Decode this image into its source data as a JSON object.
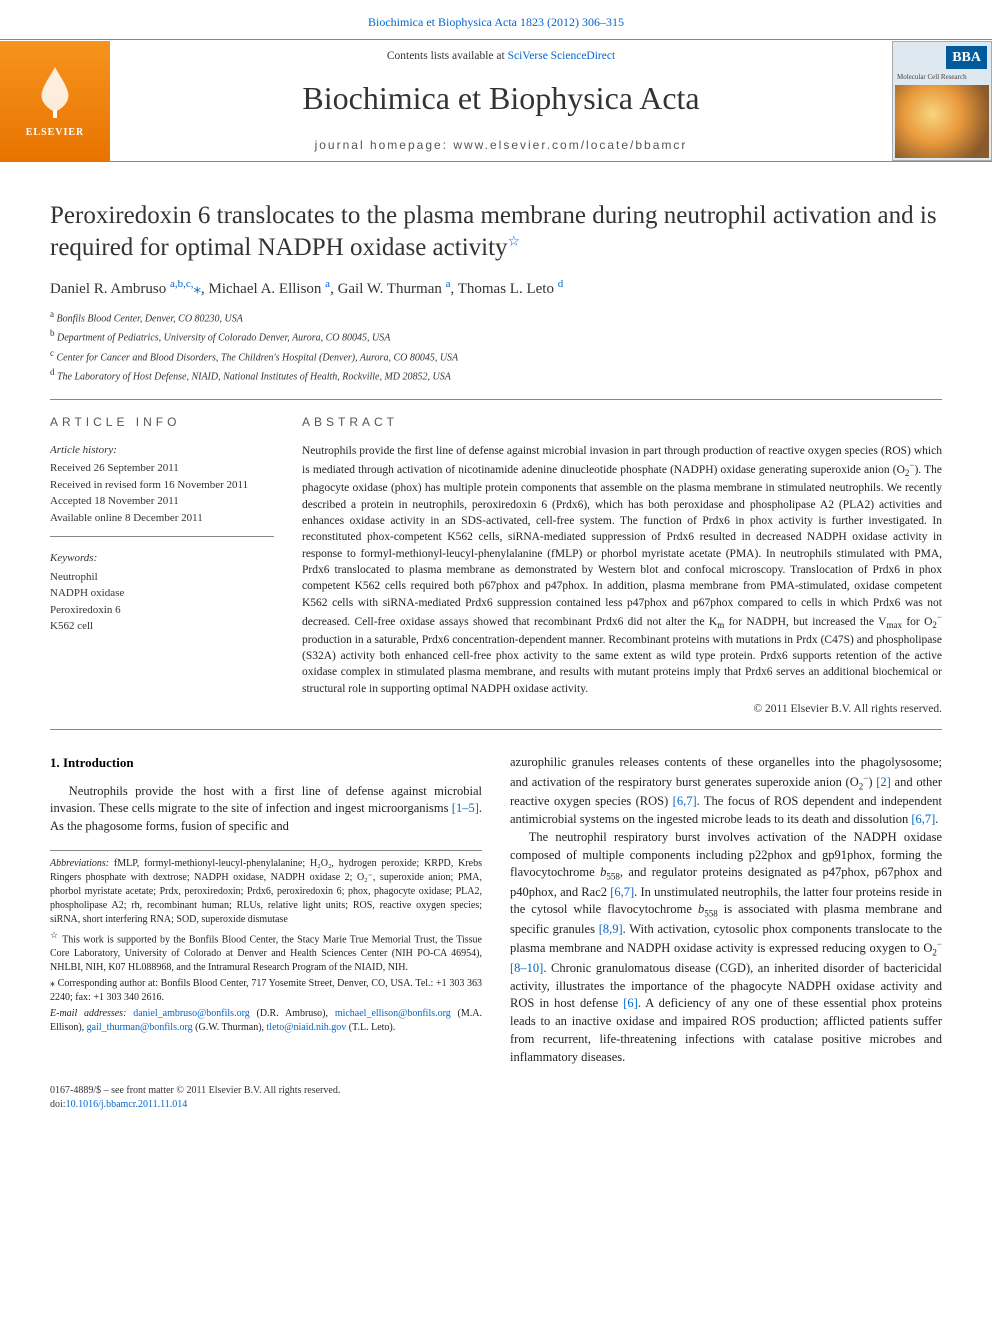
{
  "top_link": "Biochimica et Biophysica Acta 1823 (2012) 306–315",
  "header": {
    "contents_prefix": "Contents lists available at ",
    "contents_link": "SciVerse ScienceDirect",
    "journal_name": "Biochimica et Biophysica Acta",
    "homepage_label": "journal homepage: www.elsevier.com/locate/bbamcr",
    "elsevier_label": "ELSEVIER",
    "cover_badge": "BBA",
    "cover_subtitle": "Molecular Cell Research"
  },
  "article": {
    "title": "Peroxiredoxin 6 translocates to the plasma membrane during neutrophil activation and is required for optimal NADPH oxidase activity",
    "star": "☆",
    "authors_html": "Daniel R. Ambruso <sup class='affil-sup'>a,b,c,</sup><span class='corr'>⁎</span>, Michael A. Ellison <sup class='affil-sup'>a</sup>, Gail W. Thurman <sup class='affil-sup'>a</sup>, Thomas L. Leto <sup class='affil-sup'>d</sup>",
    "affiliations": [
      {
        "sup": "a",
        "text": "Bonfils Blood Center, Denver, CO 80230, USA"
      },
      {
        "sup": "b",
        "text": "Department of Pediatrics, University of Colorado Denver, Aurora, CO 80045, USA"
      },
      {
        "sup": "c",
        "text": "Center for Cancer and Blood Disorders, The Children's Hospital (Denver), Aurora, CO 80045, USA"
      },
      {
        "sup": "d",
        "text": "The Laboratory of Host Defense, NIAID, National Institutes of Health, Rockville, MD 20852, USA"
      }
    ]
  },
  "info": {
    "heading": "article info",
    "history_label": "Article history:",
    "history": [
      "Received 26 September 2011",
      "Received in revised form 16 November 2011",
      "Accepted 18 November 2011",
      "Available online 8 December 2011"
    ],
    "keywords_label": "Keywords:",
    "keywords": [
      "Neutrophil",
      "NADPH oxidase",
      "Peroxiredoxin 6",
      "K562 cell"
    ]
  },
  "abstract": {
    "heading": "abstract",
    "text_html": "Neutrophils provide the first line of defense against microbial invasion in part through production of reactive oxygen species (ROS) which is mediated through activation of nicotinamide adenine dinucleotide phosphate (NADPH) oxidase generating superoxide anion (O<sub>2</sub><sup>−</sup>). The phagocyte oxidase (phox) has multiple protein components that assemble on the plasma membrane in stimulated neutrophils. We recently described a protein in neutrophils, peroxiredoxin 6 (Prdx6), which has both peroxidase and phospholipase A2 (PLA2) activities and enhances oxidase activity in an SDS-activated, cell-free system. The function of Prdx6 in phox activity is further investigated. In reconstituted phox-competent K562 cells, siRNA-mediated suppression of Prdx6 resulted in decreased NADPH oxidase activity in response to formyl-methionyl-leucyl-phenylalanine (fMLP) or phorbol myristate acetate (PMA). In neutrophils stimulated with PMA, Prdx6 translocated to plasma membrane as demonstrated by Western blot and confocal microscopy. Translocation of Prdx6 in phox competent K562 cells required both p67phox and p47phox. In addition, plasma membrane from PMA-stimulated, oxidase competent K562 cells with siRNA-mediated Prdx6 suppression contained less p47phox and p67phox compared to cells in which Prdx6 was not decreased. Cell-free oxidase assays showed that recombinant Prdx6 did not alter the K<sub>m</sub> for NADPH, but increased the V<sub>max</sub> for O<sub>2</sub><sup>−</sup> production in a saturable, Prdx6 concentration-dependent manner. Recombinant proteins with mutations in Prdx (C47S) and phospholipase (S32A) activity both enhanced cell-free phox activity to the same extent as wild type protein. Prdx6 supports retention of the active oxidase complex in stimulated plasma membrane, and results with mutant proteins imply that Prdx6 serves an additional biochemical or structural role in supporting optimal NADPH oxidase activity.",
    "copyright": "© 2011 Elsevier B.V. All rights reserved."
  },
  "body": {
    "section1_heading": "1. Introduction",
    "col1_p1_html": "Neutrophils provide the host with a first line of defense against microbial invasion. These cells migrate to the site of infection and ingest microorganisms <span class='ref-link'>[1–5]</span>. As the phagosome forms, fusion of specific and",
    "col2_p1_html": "azurophilic granules releases contents of these organelles into the phagolysosome; and activation of the respiratory burst generates superoxide anion (O<sub>2</sub><sup>−</sup>) <span class='ref-link'>[2]</span> and other reactive oxygen species (ROS) <span class='ref-link'>[6,7]</span>. The focus of ROS dependent and independent antimicrobial systems on the ingested microbe leads to its death and dissolution <span class='ref-link'>[6,7]</span>.",
    "col2_p2_html": "The neutrophil respiratory burst involves activation of the NADPH oxidase composed of multiple components including p22phox and gp91phox, forming the flavocytochrome <i>b</i><sub>558</sub>, and regulator proteins designated as p47phox, p67phox and p40phox, and Rac2 <span class='ref-link'>[6,7]</span>. In unstimulated neutrophils, the latter four proteins reside in the cytosol while flavocytochrome <i>b</i><sub>558</sub> is associated with plasma membrane and specific granules <span class='ref-link'>[8,9]</span>. With activation, cytosolic phox components translocate to the plasma membrane and NADPH oxidase activity is expressed reducing oxygen to O<sub>2</sub><sup>−</sup> <span class='ref-link'>[8–10]</span>. Chronic granulomatous disease (CGD), an inherited disorder of bactericidal activity, illustrates the importance of the phagocyte NADPH oxidase activity and ROS in host defense <span class='ref-link'>[6]</span>. A deficiency of any one of these essential phox proteins leads to an inactive oxidase and impaired ROS production; afflicted patients suffer from recurrent, life-threatening infections with catalase positive microbes and inflammatory diseases."
  },
  "footnotes": {
    "abbrev_label": "Abbreviations:",
    "abbrev_text": " fMLP, formyl-methionyl-leucyl-phenylalanine; H₂O₂, hydrogen peroxide; KRPD, Krebs Ringers phosphate with dextrose; NADPH oxidase, NADPH oxidase 2; O₂⁻, superoxide anion; PMA, phorbol myristate acetate; Prdx, peroxiredoxin; Prdx6, peroxiredoxin 6; phox, phagocyte oxidase; PLA2, phospholipase A2; rh, recombinant human; RLUs, relative light units; ROS, reactive oxygen species; siRNA, short interfering RNA; SOD, superoxide dismutase",
    "funding_star": "☆",
    "funding_text": " This work is supported by the Bonfils Blood Center, the Stacy Marie True Memorial Trust, the Tissue Core Laboratory, University of Colorado at Denver and Health Sciences Center (NIH PO-CA 46954), NHLBI, NIH, K07 HL088968, and the Intramural Research Program of the NIAID, NIH.",
    "corr_star": "⁎",
    "corr_text": " Corresponding author at: Bonfils Blood Center, 717 Yosemite Street, Denver, CO, USA. Tel.: +1 303 363 2240; fax: +1 303 340 2616.",
    "email_label": "E-mail addresses:",
    "emails_html": " <span class='email'>daniel_ambruso@bonfils.org</span> (D.R. Ambruso), <span class='email'>michael_ellison@bonfils.org</span> (M.A. Ellison), <span class='email'>gail_thurman@bonfils.org</span> (G.W. Thurman), <span class='email'>tleto@niaid.nih.gov</span> (T.L. Leto)."
  },
  "bottom": {
    "issn_line": "0167-4889/$ – see front matter © 2011 Elsevier B.V. All rights reserved.",
    "doi_prefix": "doi:",
    "doi": "10.1016/j.bbamcr.2011.11.014"
  },
  "colors": {
    "link": "#0066cc",
    "elsevier_orange": "#f7941e",
    "bba_blue": "#005a9c",
    "rule": "#888888",
    "text": "#222222"
  }
}
